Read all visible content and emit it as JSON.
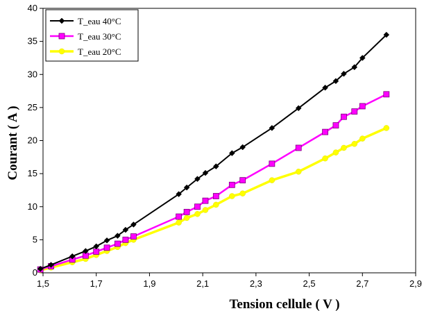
{
  "chart_data": {
    "type": "line",
    "title": "",
    "xlabel": "Tension cellule ( V )",
    "ylabel": "Courant ( A )",
    "xlim": [
      1.5,
      2.9
    ],
    "ylim": [
      0,
      40
    ],
    "x_ticks": [
      "1,5",
      "1,7",
      "1,9",
      "2,1",
      "2,3",
      "2,5",
      "2,7",
      "2,9"
    ],
    "x_tick_values": [
      1.5,
      1.7,
      1.9,
      2.1,
      2.3,
      2.5,
      2.7,
      2.9
    ],
    "y_ticks": [
      "0",
      "5",
      "10",
      "15",
      "20",
      "25",
      "30",
      "35",
      "40"
    ],
    "y_tick_values": [
      0,
      5,
      10,
      15,
      20,
      25,
      30,
      35,
      40
    ],
    "grid": false,
    "legend_position": "top-left",
    "series": [
      {
        "name": "T_eau 40°C",
        "color": "#000000",
        "marker": "diamond",
        "x": [
          1.49,
          1.53,
          1.61,
          1.66,
          1.7,
          1.74,
          1.78,
          1.81,
          1.84,
          2.01,
          2.04,
          2.08,
          2.11,
          2.15,
          2.21,
          2.25,
          2.36,
          2.46,
          2.56,
          2.6,
          2.63,
          2.67,
          2.7,
          2.79
        ],
        "y": [
          0.6,
          1.2,
          2.5,
          3.3,
          4.0,
          4.9,
          5.6,
          6.5,
          7.3,
          11.9,
          12.9,
          14.2,
          15.1,
          16.1,
          18.1,
          19.0,
          21.9,
          24.9,
          28.0,
          29.0,
          30.1,
          31.1,
          32.5,
          36.0
        ]
      },
      {
        "name": "T_eau 30°C",
        "color": "#ff00ff",
        "marker": "square",
        "x": [
          1.49,
          1.53,
          1.61,
          1.66,
          1.7,
          1.74,
          1.78,
          1.81,
          1.84,
          2.01,
          2.04,
          2.08,
          2.11,
          2.15,
          2.21,
          2.25,
          2.36,
          2.46,
          2.56,
          2.6,
          2.63,
          2.67,
          2.7,
          2.79
        ],
        "y": [
          0.5,
          1.0,
          2.0,
          2.6,
          3.2,
          3.8,
          4.4,
          5.0,
          5.5,
          8.5,
          9.2,
          10.0,
          10.9,
          11.6,
          13.3,
          14.0,
          16.5,
          18.9,
          21.3,
          22.3,
          23.6,
          24.4,
          25.2,
          27.0
        ]
      },
      {
        "name": "T_eau 20°C",
        "color": "#ffff00",
        "marker": "circle",
        "x": [
          1.49,
          1.53,
          1.61,
          1.66,
          1.7,
          1.74,
          1.78,
          1.81,
          1.84,
          2.01,
          2.04,
          2.08,
          2.11,
          2.15,
          2.21,
          2.25,
          2.36,
          2.46,
          2.56,
          2.6,
          2.63,
          2.67,
          2.7,
          2.79
        ],
        "y": [
          0.4,
          0.8,
          1.6,
          2.1,
          2.7,
          3.3,
          3.9,
          4.5,
          5.0,
          7.6,
          8.3,
          8.9,
          9.5,
          10.3,
          11.6,
          12.0,
          14.0,
          15.3,
          17.3,
          18.2,
          18.9,
          19.5,
          20.3,
          21.9
        ]
      }
    ]
  }
}
